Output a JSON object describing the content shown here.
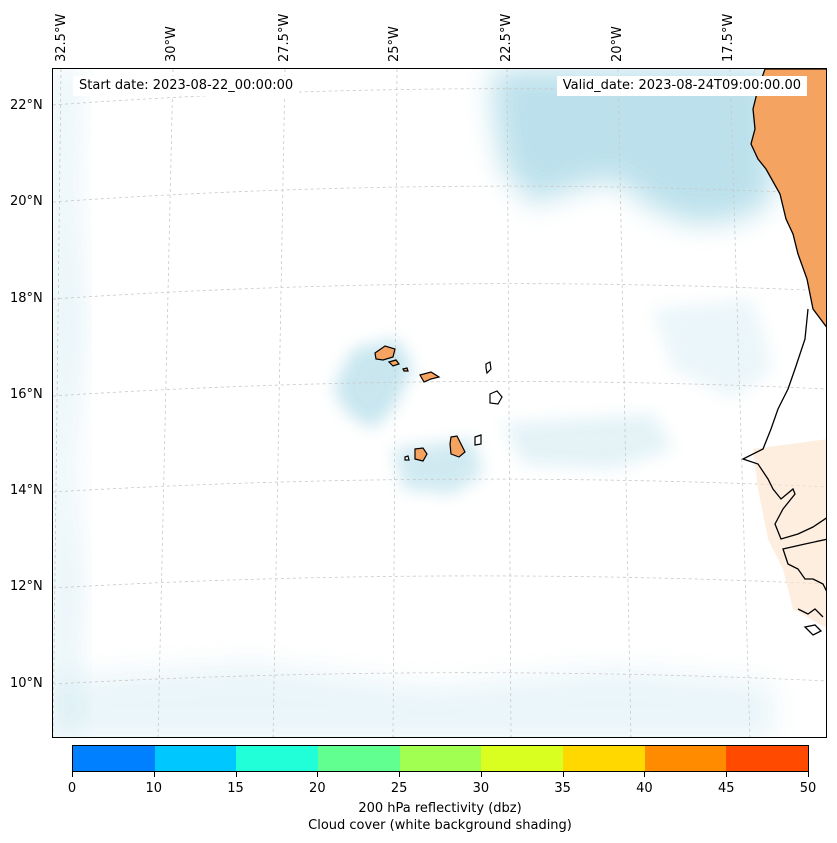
{
  "map": {
    "start_label": "Start date: 2023-08-22_00:00:00",
    "valid_label": "Valid_date: 2023-08-24T09:00:00.00",
    "lon_labels": [
      "32.5°W",
      "30°W",
      "27.5°W",
      "25°W",
      "22.5°W",
      "20°W",
      "17.5°W"
    ],
    "lat_labels": [
      "22°N",
      "20°N",
      "18°N",
      "16°N",
      "14°N",
      "12°N",
      "10°N"
    ],
    "land_color": "#f4a460",
    "cloud_color": "#a8d8e6"
  },
  "colorbar": {
    "colors": [
      "#0080ff",
      "#00c8ff",
      "#20ffd8",
      "#60ff90",
      "#a0ff50",
      "#d8ff20",
      "#ffd800",
      "#ff8c00",
      "#ff4a00"
    ],
    "ticks": [
      "0",
      "10",
      "15",
      "20",
      "25",
      "30",
      "35",
      "40",
      "45",
      "50"
    ],
    "label_line1": "200 hPa reflectivity (dbz)",
    "label_line2": "Cloud cover (white background shading)"
  }
}
